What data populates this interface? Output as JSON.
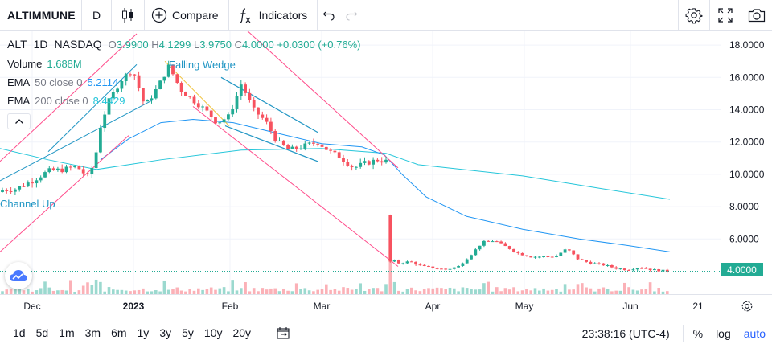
{
  "toolbar": {
    "symbol": "ALTIMMUNE",
    "interval": "D",
    "compare_label": "Compare",
    "indicators_label": "Indicators",
    "icons": [
      "candles-icon",
      "plus-circle-icon",
      "fx-icon",
      "undo-icon",
      "redo-icon",
      "gear-icon",
      "fullscreen-icon",
      "camera-icon"
    ]
  },
  "legend": {
    "ticker": "ALT",
    "interval": "1D",
    "exchange": "NASDAQ",
    "o_label": "O",
    "o": "3.9900",
    "h_label": "H",
    "h": "4.1299",
    "l_label": "L",
    "l": "3.9750",
    "c_label": "C",
    "c": "4.0000",
    "change": "+0.0300 (+0.76%)",
    "volume_name": "Volume",
    "volume_value": "1.688M",
    "ema1_name": "EMA",
    "ema1_params": "50 close 0",
    "ema1_value": "5.2114",
    "ema2_name": "EMA",
    "ema2_params": "200 close 0",
    "ema2_value": "8.4429"
  },
  "patterns": {
    "falling_wedge": "Falling Wedge",
    "channel_up": "Channel Up"
  },
  "price_axis": {
    "labels": [
      "18.0000",
      "16.0000",
      "14.0000",
      "12.0000",
      "10.0000",
      "8.0000",
      "6.0000",
      "4.0000"
    ],
    "current_badge": "4.0000"
  },
  "time_axis": {
    "labels": [
      "Dec",
      "2023",
      "Feb",
      "Mar",
      "Apr",
      "May",
      "Jun",
      "21"
    ]
  },
  "bottom": {
    "ranges": [
      "1d",
      "5d",
      "1m",
      "3m",
      "6m",
      "1y",
      "3y",
      "5y",
      "10y",
      "20y"
    ],
    "clock": "23:38:16 (UTC-4)",
    "percent_label": "%",
    "log_label": "log",
    "auto_label": "auto"
  },
  "colors": {
    "up": "#22ab94",
    "down": "#f7525f",
    "ema50": "#2196f3",
    "ema200": "#26c6da",
    "pattern": "#2196c4",
    "channel": "#ff4c8b"
  },
  "chart_data": {
    "type": "candlestick",
    "series": [
      {
        "name": "EMA 50 close 0",
        "last": 5.2114
      },
      {
        "name": "EMA 200 close 0",
        "last": 8.4429
      }
    ],
    "last_close": 4.0,
    "y_range": [
      3.5,
      19.0
    ]
  }
}
